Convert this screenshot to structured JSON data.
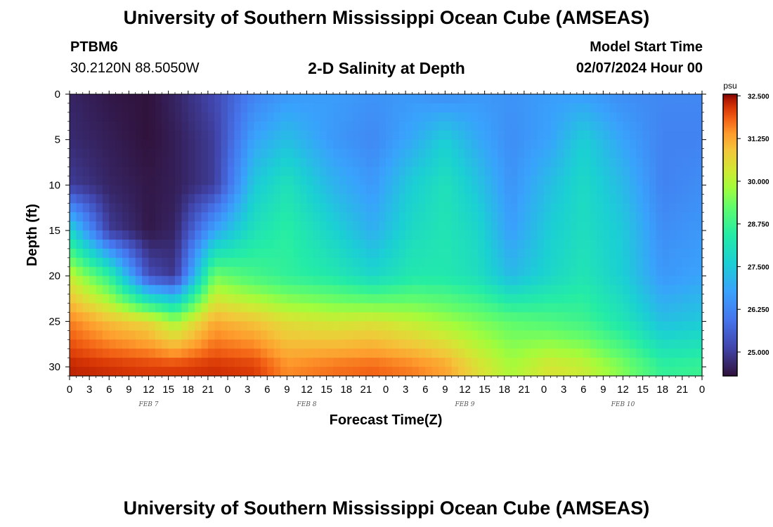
{
  "header": {
    "title": "University of Southern Mississippi Ocean Cube (AMSEAS)",
    "station_id": "PTBM6",
    "coords": "30.2120N  88.5050W",
    "subtitle": "2-D Salinity at Depth",
    "model_label": "Model Start Time",
    "model_time": "02/07/2024 Hour 00"
  },
  "footer": {
    "title": "University of Southern Mississippi Ocean Cube (AMSEAS)"
  },
  "chart_data": {
    "type": "heatmap",
    "title": "2-D Salinity at Depth",
    "xlabel": "Forecast Time(Z)",
    "ylabel": "Depth (ft)",
    "x_range_hours": [
      0,
      96
    ],
    "ylim": [
      31,
      0
    ],
    "x_tick_hours": [
      0,
      3,
      6,
      9,
      12,
      15,
      18,
      21,
      24,
      27,
      30,
      33,
      36,
      39,
      42,
      45,
      48,
      51,
      54,
      57,
      60,
      63,
      66,
      69,
      72,
      75,
      78,
      81,
      84,
      87,
      90,
      93,
      96
    ],
    "x_tick_labels": [
      "0",
      "3",
      "6",
      "9",
      "12",
      "15",
      "18",
      "21",
      "0",
      "3",
      "6",
      "9",
      "12",
      "15",
      "18",
      "21",
      "0",
      "3",
      "6",
      "9",
      "12",
      "15",
      "18",
      "21",
      "0",
      "3",
      "6",
      "9",
      "12",
      "15",
      "18",
      "21",
      "0"
    ],
    "day_labels": [
      {
        "label": "FEB 7",
        "hour": 12
      },
      {
        "label": "FEB 8",
        "hour": 36
      },
      {
        "label": "FEB 9",
        "hour": 60
      },
      {
        "label": "FEB 10",
        "hour": 84
      }
    ],
    "y_ticks": [
      0,
      5,
      10,
      15,
      20,
      25,
      30
    ],
    "colorbar": {
      "unit": "psu",
      "min": 24.3,
      "max": 32.55,
      "ticks": [
        25.0,
        26.25,
        27.5,
        28.75,
        30.0,
        31.25,
        32.5
      ],
      "tick_labels": [
        "25.000",
        "26.250",
        "27.500",
        "28.750",
        "30.000",
        "31.250",
        "32.500"
      ]
    },
    "depth_knots_ft": [
      0,
      5,
      10,
      15,
      20,
      25,
      30
    ],
    "time_knots_hours": [
      0,
      6,
      12,
      16,
      22,
      28,
      33,
      40,
      46,
      52,
      57,
      62,
      67,
      73,
      78,
      84,
      90,
      96
    ],
    "salinity_psu": [
      [
        24.6,
        24.4,
        24.3,
        24.6,
        25.2,
        26.2,
        26.6,
        26.7,
        26.5,
        26.6,
        26.4,
        26.6,
        26.5,
        26.7,
        26.7,
        26.4,
        26.3,
        26.3
      ],
      [
        24.7,
        24.5,
        24.3,
        24.5,
        25.0,
        26.8,
        27.3,
        26.6,
        26.3,
        26.9,
        27.6,
        26.9,
        26.4,
        26.8,
        27.6,
        26.8,
        26.2,
        26.2
      ],
      [
        25.0,
        24.6,
        24.4,
        24.5,
        25.0,
        27.5,
        28.1,
        27.1,
        26.6,
        27.6,
        28.1,
        27.4,
        26.5,
        27.3,
        27.9,
        27.2,
        26.2,
        26.4
      ],
      [
        27.8,
        25.0,
        24.4,
        24.6,
        26.8,
        28.1,
        28.5,
        27.7,
        27.0,
        27.9,
        28.2,
        27.8,
        26.7,
        27.6,
        28.0,
        27.5,
        26.4,
        26.6
      ],
      [
        30.2,
        28.6,
        25.3,
        24.9,
        29.4,
        28.9,
        28.6,
        28.3,
        27.8,
        28.3,
        28.3,
        28.0,
        27.2,
        27.8,
        28.2,
        27.6,
        26.6,
        26.8
      ],
      [
        31.6,
        31.0,
        30.6,
        29.8,
        31.2,
        30.9,
        30.5,
        30.3,
        30.4,
        30.1,
        29.8,
        29.5,
        29.2,
        29.0,
        28.8,
        28.2,
        27.3,
        27.5
      ],
      [
        32.3,
        32.2,
        32.1,
        32.1,
        32.2,
        32.1,
        31.5,
        31.7,
        31.8,
        31.6,
        31.3,
        30.5,
        29.9,
        30.4,
        30.2,
        29.5,
        28.6,
        28.7
      ]
    ]
  }
}
